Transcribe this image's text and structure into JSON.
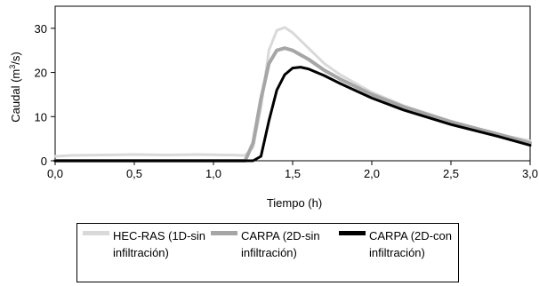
{
  "chart_data": {
    "type": "line",
    "xlabel": "Tiempo (h)",
    "ylabel_prefix": "Caudal (m",
    "ylabel_sup": "3",
    "ylabel_suffix": "/s)",
    "xlim": [
      0,
      3
    ],
    "ylim": [
      0,
      35
    ],
    "x_ticks": [
      "0,0",
      "0,5",
      "1,0",
      "1,5",
      "2,0",
      "2,5",
      "3,0"
    ],
    "y_ticks": [
      "0",
      "10",
      "20",
      "30"
    ],
    "grid": false,
    "legend_position": "bottom",
    "series": [
      {
        "name": "HEC-RAS (1D-sin infiltración)",
        "color": "#d9d9d9",
        "width": 3,
        "x": [
          0,
          0.1,
          0.3,
          0.5,
          0.7,
          0.9,
          1.1,
          1.2,
          1.25,
          1.3,
          1.35,
          1.4,
          1.45,
          1.5,
          1.6,
          1.7,
          1.8,
          2.0,
          2.2,
          2.5,
          2.8,
          3.0
        ],
        "y": [
          1,
          1.2,
          1.3,
          1.4,
          1.3,
          1.4,
          1.3,
          1.2,
          3,
          12,
          25,
          29.5,
          30.2,
          29,
          25.5,
          22,
          19.5,
          15.5,
          12.5,
          9,
          6,
          4.5
        ]
      },
      {
        "name": "CARPA (2D-sin infiltración)",
        "color": "#a6a6a6",
        "width": 4,
        "x": [
          0,
          1.0,
          1.2,
          1.25,
          1.3,
          1.35,
          1.4,
          1.45,
          1.5,
          1.6,
          1.7,
          1.8,
          2.0,
          2.2,
          2.5,
          2.8,
          3.0
        ],
        "y": [
          0,
          0,
          0,
          4,
          14,
          22,
          25,
          25.5,
          25,
          23,
          20.5,
          18.5,
          15,
          12.2,
          8.8,
          6,
          4
        ]
      },
      {
        "name": "CARPA (2D-con infiltración)",
        "color": "#000000",
        "width": 3,
        "x": [
          0,
          1.0,
          1.25,
          1.3,
          1.35,
          1.4,
          1.45,
          1.5,
          1.55,
          1.6,
          1.7,
          1.8,
          2.0,
          2.2,
          2.5,
          2.8,
          3.0
        ],
        "y": [
          0,
          0,
          0,
          1,
          9,
          16,
          19.5,
          21,
          21.2,
          20.8,
          19.3,
          17.5,
          14.2,
          11.5,
          8.2,
          5.5,
          3.5
        ]
      }
    ]
  }
}
